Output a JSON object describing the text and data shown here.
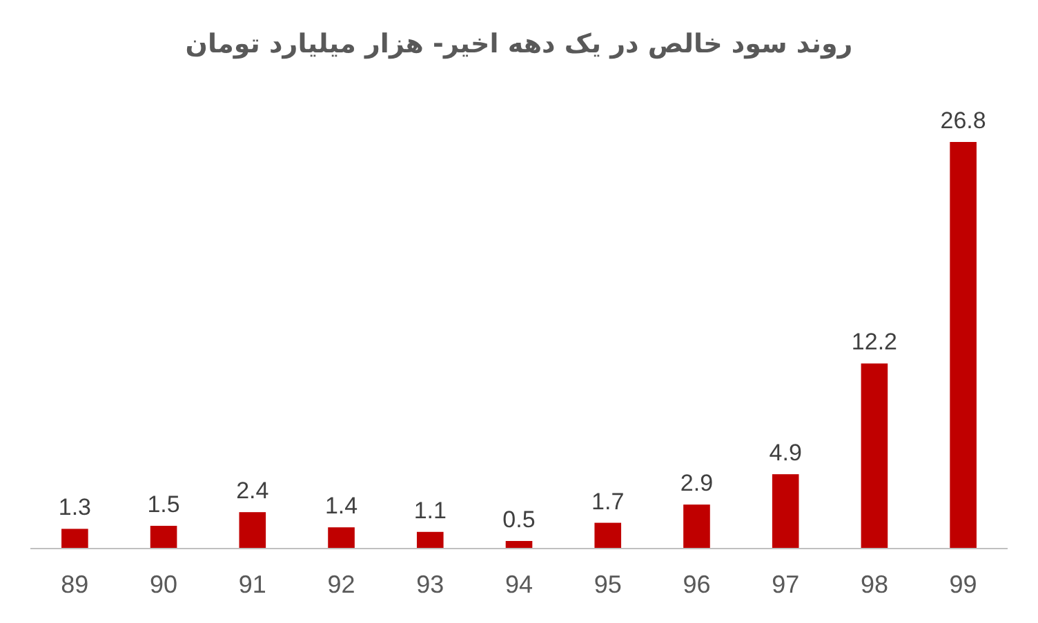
{
  "chart_data": {
    "type": "bar",
    "title": "روند سود خالص در یک دهه اخیر- هزار میلیارد تومان",
    "categories": [
      "89",
      "90",
      "91",
      "92",
      "93",
      "94",
      "95",
      "96",
      "97",
      "98",
      "99"
    ],
    "values": [
      1.3,
      1.5,
      2.4,
      1.4,
      1.1,
      0.5,
      1.7,
      2.9,
      4.9,
      12.2,
      26.8
    ],
    "color": "#c00000",
    "data_labels": true,
    "grid": false
  }
}
